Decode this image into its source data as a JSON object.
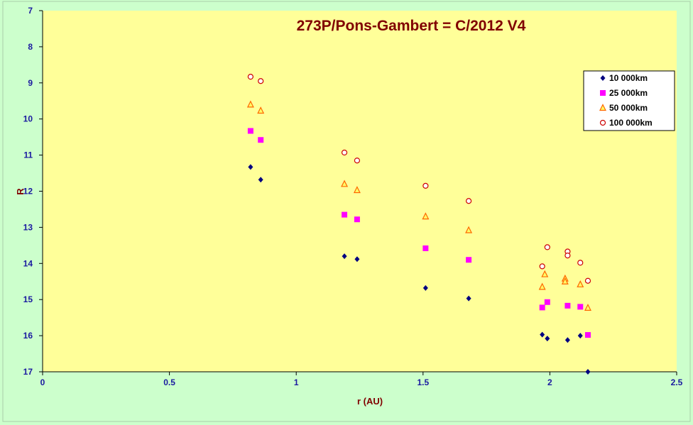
{
  "chart_data": {
    "type": "scatter",
    "title": "273P/Pons-Gambert = C/2012 V4",
    "xlabel": "r (AU)",
    "ylabel": "R",
    "xlim": [
      0,
      2.5
    ],
    "ylim": [
      7,
      17
    ],
    "y_inverted": true,
    "x_ticks": [
      "0",
      "0.5",
      "1",
      "1.5",
      "2",
      "2.5"
    ],
    "y_ticks": [
      "7",
      "8",
      "9",
      "10",
      "11",
      "12",
      "13",
      "14",
      "15",
      "16",
      "17"
    ],
    "grid": false,
    "legend_position": "top-right",
    "colors": {
      "plot_bg": "#ffff99",
      "outer_bg": "#ccffcc",
      "title": "#800000",
      "tick": "#1a1aa0"
    },
    "series": [
      {
        "name": "10 000km",
        "marker": "diamond",
        "color": "#000080",
        "points": [
          [
            0.82,
            11.33
          ],
          [
            0.86,
            11.68
          ],
          [
            1.19,
            13.8
          ],
          [
            1.24,
            13.88
          ],
          [
            1.51,
            14.68
          ],
          [
            1.68,
            14.97
          ],
          [
            1.97,
            15.97
          ],
          [
            1.99,
            16.08
          ],
          [
            2.07,
            16.12
          ],
          [
            2.12,
            16.0
          ],
          [
            2.15,
            17.0
          ]
        ]
      },
      {
        "name": "25 000km",
        "marker": "square",
        "color": "#ff00ff",
        "points": [
          [
            0.82,
            10.33
          ],
          [
            0.86,
            10.58
          ],
          [
            1.19,
            12.65
          ],
          [
            1.24,
            12.78
          ],
          [
            1.51,
            13.58
          ],
          [
            1.68,
            13.9
          ],
          [
            1.97,
            15.22
          ],
          [
            1.99,
            15.07
          ],
          [
            2.07,
            15.17
          ],
          [
            2.12,
            15.2
          ],
          [
            2.15,
            15.98
          ]
        ]
      },
      {
        "name": "50 000km",
        "marker": "triangle",
        "color": "#ff6600",
        "points": [
          [
            0.82,
            9.6
          ],
          [
            0.86,
            9.77
          ],
          [
            1.19,
            11.8
          ],
          [
            1.24,
            11.97
          ],
          [
            1.51,
            12.7
          ],
          [
            1.68,
            13.08
          ],
          [
            1.97,
            14.65
          ],
          [
            1.98,
            14.3
          ],
          [
            2.06,
            14.42
          ],
          [
            2.06,
            14.5
          ],
          [
            2.12,
            14.58
          ],
          [
            2.15,
            15.23
          ]
        ]
      },
      {
        "name": "100 000km",
        "marker": "circle",
        "color": "#cc0000",
        "points": [
          [
            0.82,
            8.83
          ],
          [
            0.86,
            8.95
          ],
          [
            1.19,
            10.93
          ],
          [
            1.24,
            11.15
          ],
          [
            1.51,
            11.85
          ],
          [
            1.68,
            12.27
          ],
          [
            1.97,
            14.08
          ],
          [
            1.99,
            13.55
          ],
          [
            2.07,
            13.67
          ],
          [
            2.07,
            13.78
          ],
          [
            2.12,
            13.98
          ],
          [
            2.15,
            14.48
          ]
        ]
      }
    ]
  }
}
